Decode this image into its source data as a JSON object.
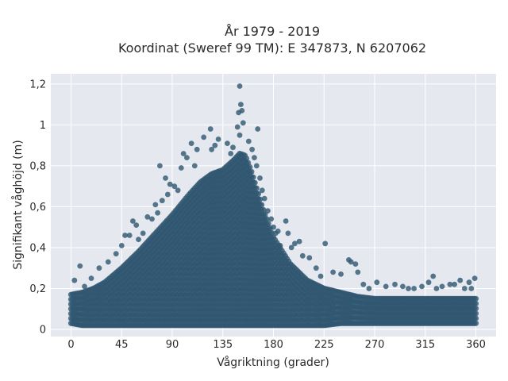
{
  "chart_data": {
    "type": "scatter",
    "title_line1": "År 1979 - 2019",
    "title_line2": "Koordinat (Sweref 99 TM): E 347873, N 6207062",
    "xlabel": "Vågriktning (grader)",
    "ylabel": "Signifikant våghöjd (m)",
    "xlim": [
      -18,
      378
    ],
    "ylim": [
      -0.035,
      1.25
    ],
    "xticks": [
      0,
      45,
      90,
      135,
      180,
      225,
      270,
      315,
      360
    ],
    "xtick_labels": [
      "0",
      "45",
      "90",
      "135",
      "180",
      "225",
      "270",
      "315",
      "360"
    ],
    "yticks": [
      0,
      0.2,
      0.4,
      0.6,
      0.8,
      1,
      1.2
    ],
    "ytick_labels": [
      "0",
      "0,2",
      "0,4",
      "0,6",
      "0,8",
      "1",
      "1,2"
    ],
    "grid": true,
    "colors": {
      "background": "#e5e8ef",
      "grid": "#ffffff",
      "marker": "#2f5670"
    },
    "envelope": {
      "x": [
        0,
        10,
        20,
        30,
        45,
        60,
        75,
        90,
        105,
        115,
        125,
        135,
        145,
        150,
        155,
        160,
        170,
        180,
        195,
        210,
        225,
        240,
        255,
        270,
        300,
        330,
        360
      ],
      "y_low": [
        0.03,
        0.02,
        0.02,
        0.02,
        0.02,
        0.02,
        0.02,
        0.02,
        0.02,
        0.02,
        0.02,
        0.02,
        0.02,
        0.02,
        0.02,
        0.02,
        0.02,
        0.02,
        0.02,
        0.02,
        0.02,
        0.03,
        0.03,
        0.03,
        0.03,
        0.03,
        0.03
      ],
      "y_high": [
        0.17,
        0.18,
        0.2,
        0.23,
        0.3,
        0.38,
        0.47,
        0.56,
        0.66,
        0.72,
        0.76,
        0.78,
        0.83,
        0.86,
        0.85,
        0.78,
        0.6,
        0.45,
        0.32,
        0.24,
        0.2,
        0.18,
        0.16,
        0.15,
        0.15,
        0.15,
        0.15
      ]
    },
    "outliers": [
      {
        "x": 150,
        "y": 1.19
      },
      {
        "x": 151,
        "y": 1.1
      },
      {
        "x": 152,
        "y": 1.07
      },
      {
        "x": 149,
        "y": 1.06
      },
      {
        "x": 148,
        "y": 0.99
      },
      {
        "x": 153,
        "y": 1.01
      },
      {
        "x": 150,
        "y": 0.95
      },
      {
        "x": 166,
        "y": 0.98
      },
      {
        "x": 124,
        "y": 0.98
      },
      {
        "x": 118,
        "y": 0.94
      },
      {
        "x": 131,
        "y": 0.93
      },
      {
        "x": 139,
        "y": 0.91
      },
      {
        "x": 107,
        "y": 0.91
      },
      {
        "x": 112,
        "y": 0.88
      },
      {
        "x": 125,
        "y": 0.88
      },
      {
        "x": 144,
        "y": 0.89
      },
      {
        "x": 100,
        "y": 0.86
      },
      {
        "x": 128,
        "y": 0.9
      },
      {
        "x": 98,
        "y": 0.79
      },
      {
        "x": 79,
        "y": 0.8
      },
      {
        "x": 84,
        "y": 0.74
      },
      {
        "x": 88,
        "y": 0.71
      },
      {
        "x": 92,
        "y": 0.7
      },
      {
        "x": 95,
        "y": 0.68
      },
      {
        "x": 103,
        "y": 0.84
      },
      {
        "x": 110,
        "y": 0.8
      },
      {
        "x": 142,
        "y": 0.86
      },
      {
        "x": 158,
        "y": 0.92
      },
      {
        "x": 161,
        "y": 0.88
      },
      {
        "x": 163,
        "y": 0.84
      },
      {
        "x": 165,
        "y": 0.8
      },
      {
        "x": 168,
        "y": 0.74
      },
      {
        "x": 170,
        "y": 0.68
      },
      {
        "x": 172,
        "y": 0.64
      },
      {
        "x": 175,
        "y": 0.58
      },
      {
        "x": 178,
        "y": 0.54
      },
      {
        "x": 180,
        "y": 0.5
      },
      {
        "x": 182,
        "y": 0.47
      },
      {
        "x": 184,
        "y": 0.48
      },
      {
        "x": 186,
        "y": 0.41
      },
      {
        "x": 191,
        "y": 0.53
      },
      {
        "x": 193,
        "y": 0.47
      },
      {
        "x": 196,
        "y": 0.4
      },
      {
        "x": 199,
        "y": 0.42
      },
      {
        "x": 203,
        "y": 0.43
      },
      {
        "x": 206,
        "y": 0.36
      },
      {
        "x": 212,
        "y": 0.35
      },
      {
        "x": 218,
        "y": 0.3
      },
      {
        "x": 222,
        "y": 0.26
      },
      {
        "x": 226,
        "y": 0.42
      },
      {
        "x": 233,
        "y": 0.28
      },
      {
        "x": 240,
        "y": 0.27
      },
      {
        "x": 247,
        "y": 0.34
      },
      {
        "x": 249,
        "y": 0.33
      },
      {
        "x": 253,
        "y": 0.32
      },
      {
        "x": 255,
        "y": 0.28
      },
      {
        "x": 260,
        "y": 0.22
      },
      {
        "x": 265,
        "y": 0.2
      },
      {
        "x": 272,
        "y": 0.23
      },
      {
        "x": 280,
        "y": 0.21
      },
      {
        "x": 288,
        "y": 0.22
      },
      {
        "x": 295,
        "y": 0.21
      },
      {
        "x": 300,
        "y": 0.2
      },
      {
        "x": 305,
        "y": 0.2
      },
      {
        "x": 312,
        "y": 0.21
      },
      {
        "x": 318,
        "y": 0.23
      },
      {
        "x": 322,
        "y": 0.26
      },
      {
        "x": 325,
        "y": 0.2
      },
      {
        "x": 330,
        "y": 0.21
      },
      {
        "x": 337,
        "y": 0.22
      },
      {
        "x": 341,
        "y": 0.22
      },
      {
        "x": 346,
        "y": 0.24
      },
      {
        "x": 350,
        "y": 0.2
      },
      {
        "x": 354,
        "y": 0.23
      },
      {
        "x": 359,
        "y": 0.25
      },
      {
        "x": 356,
        "y": 0.2
      },
      {
        "x": 8,
        "y": 0.31
      },
      {
        "x": 3,
        "y": 0.24
      },
      {
        "x": 12,
        "y": 0.21
      },
      {
        "x": 18,
        "y": 0.25
      },
      {
        "x": 25,
        "y": 0.3
      },
      {
        "x": 33,
        "y": 0.33
      },
      {
        "x": 40,
        "y": 0.37
      },
      {
        "x": 45,
        "y": 0.41
      },
      {
        "x": 48,
        "y": 0.46
      },
      {
        "x": 52,
        "y": 0.46
      },
      {
        "x": 55,
        "y": 0.53
      },
      {
        "x": 58,
        "y": 0.51
      },
      {
        "x": 60,
        "y": 0.44
      },
      {
        "x": 64,
        "y": 0.47
      },
      {
        "x": 68,
        "y": 0.55
      },
      {
        "x": 72,
        "y": 0.54
      },
      {
        "x": 75,
        "y": 0.61
      },
      {
        "x": 77,
        "y": 0.57
      },
      {
        "x": 81,
        "y": 0.63
      },
      {
        "x": 86,
        "y": 0.66
      }
    ]
  }
}
